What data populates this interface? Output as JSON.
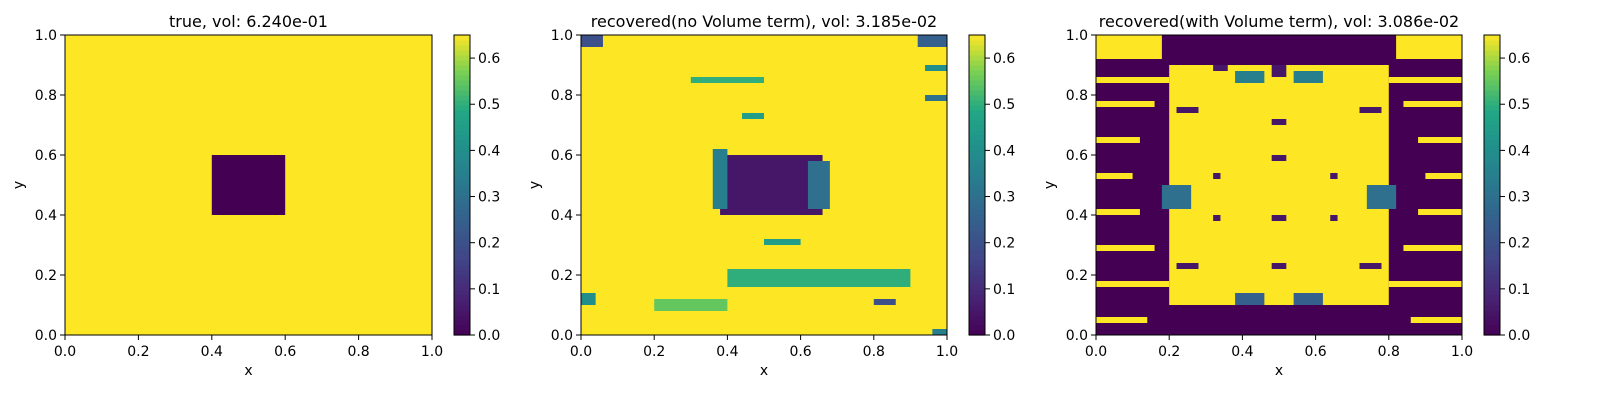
{
  "figure": {
    "colormap": "viridis",
    "colorbar": {
      "range": [
        0.0,
        0.65
      ],
      "ticks": [
        "0.0",
        "0.1",
        "0.2",
        "0.3",
        "0.4",
        "0.5",
        "0.6"
      ]
    },
    "axis_ticks": [
      "0.0",
      "0.2",
      "0.4",
      "0.6",
      "0.8",
      "1.0"
    ]
  },
  "chart_data": [
    {
      "type": "heatmap",
      "title": "true, vol: 6.240e-01",
      "xlabel": "x",
      "ylabel": "y",
      "xlim": [
        0.0,
        1.0
      ],
      "ylim": [
        0.0,
        1.0
      ],
      "vmin": 0.0,
      "vmax": 0.65,
      "background_value": 0.65,
      "regions": [
        {
          "x": [
            0.4,
            0.6
          ],
          "y": [
            0.4,
            0.6
          ],
          "value": 0.0
        }
      ]
    },
    {
      "type": "heatmap",
      "title": "recovered(no Volume term), vol: 3.185e-02",
      "xlabel": "x",
      "ylabel": "y",
      "xlim": [
        0.0,
        1.0
      ],
      "ylim": [
        0.0,
        1.0
      ],
      "vmin": 0.0,
      "vmax": 0.65,
      "background_value": 0.65,
      "regions": [
        {
          "x": [
            0.38,
            0.66
          ],
          "y": [
            0.4,
            0.6
          ],
          "value": 0.05
        },
        {
          "x": [
            0.36,
            0.4
          ],
          "y": [
            0.42,
            0.62
          ],
          "value": 0.35
        },
        {
          "x": [
            0.62,
            0.68
          ],
          "y": [
            0.42,
            0.58
          ],
          "value": 0.3
        },
        {
          "x": [
            0.0,
            0.06
          ],
          "y": [
            0.96,
            1.0
          ],
          "value": 0.2
        },
        {
          "x": [
            0.92,
            1.0
          ],
          "y": [
            0.96,
            1.0
          ],
          "value": 0.25
        },
        {
          "x": [
            0.0,
            0.04
          ],
          "y": [
            0.1,
            0.14
          ],
          "value": 0.4
        },
        {
          "x": [
            0.96,
            1.0
          ],
          "y": [
            0.0,
            0.02
          ],
          "value": 0.35
        },
        {
          "x": [
            0.3,
            0.5
          ],
          "y": [
            0.84,
            0.86
          ],
          "value": 0.5
        },
        {
          "x": [
            0.44,
            0.5
          ],
          "y": [
            0.72,
            0.74
          ],
          "value": 0.45
        },
        {
          "x": [
            0.4,
            0.9
          ],
          "y": [
            0.16,
            0.22
          ],
          "value": 0.5
        },
        {
          "x": [
            0.2,
            0.4
          ],
          "y": [
            0.08,
            0.12
          ],
          "value": 0.55
        },
        {
          "x": [
            0.5,
            0.6
          ],
          "y": [
            0.3,
            0.32
          ],
          "value": 0.45
        },
        {
          "x": [
            0.8,
            0.86
          ],
          "y": [
            0.1,
            0.12
          ],
          "value": 0.2
        },
        {
          "x": [
            0.94,
            1.0
          ],
          "y": [
            0.78,
            0.8
          ],
          "value": 0.3
        },
        {
          "x": [
            0.94,
            1.0
          ],
          "y": [
            0.88,
            0.9
          ],
          "value": 0.4
        }
      ]
    },
    {
      "type": "heatmap",
      "title": "recovered(with Volume term), vol: 3.086e-02",
      "xlabel": "x",
      "ylabel": "y",
      "xlim": [
        0.0,
        1.0
      ],
      "ylim": [
        0.0,
        1.0
      ],
      "vmin": 0.0,
      "vmax": 0.65,
      "background_value": 0.0,
      "regions": [
        {
          "x": [
            0.2,
            0.8
          ],
          "y": [
            0.1,
            0.9
          ],
          "value": 0.65
        },
        {
          "x": [
            0.0,
            0.18
          ],
          "y": [
            0.92,
            1.0
          ],
          "value": 0.65
        },
        {
          "x": [
            0.82,
            1.0
          ],
          "y": [
            0.92,
            1.0
          ],
          "value": 0.65
        },
        {
          "x": [
            0.0,
            0.2
          ],
          "y": [
            0.84,
            0.86
          ],
          "value": 0.65
        },
        {
          "x": [
            0.8,
            1.0
          ],
          "y": [
            0.84,
            0.86
          ],
          "value": 0.65
        },
        {
          "x": [
            0.0,
            0.16
          ],
          "y": [
            0.76,
            0.78
          ],
          "value": 0.65
        },
        {
          "x": [
            0.84,
            1.0
          ],
          "y": [
            0.76,
            0.78
          ],
          "value": 0.65
        },
        {
          "x": [
            0.0,
            0.12
          ],
          "y": [
            0.64,
            0.66
          ],
          "value": 0.65
        },
        {
          "x": [
            0.88,
            1.0
          ],
          "y": [
            0.64,
            0.66
          ],
          "value": 0.65
        },
        {
          "x": [
            0.0,
            0.1
          ],
          "y": [
            0.52,
            0.54
          ],
          "value": 0.65
        },
        {
          "x": [
            0.9,
            1.0
          ],
          "y": [
            0.52,
            0.54
          ],
          "value": 0.65
        },
        {
          "x": [
            0.0,
            0.12
          ],
          "y": [
            0.4,
            0.42
          ],
          "value": 0.65
        },
        {
          "x": [
            0.88,
            1.0
          ],
          "y": [
            0.4,
            0.42
          ],
          "value": 0.65
        },
        {
          "x": [
            0.0,
            0.16
          ],
          "y": [
            0.28,
            0.3
          ],
          "value": 0.65
        },
        {
          "x": [
            0.84,
            1.0
          ],
          "y": [
            0.28,
            0.3
          ],
          "value": 0.65
        },
        {
          "x": [
            0.0,
            0.2
          ],
          "y": [
            0.16,
            0.18
          ],
          "value": 0.65
        },
        {
          "x": [
            0.8,
            1.0
          ],
          "y": [
            0.16,
            0.18
          ],
          "value": 0.65
        },
        {
          "x": [
            0.0,
            0.14
          ],
          "y": [
            0.04,
            0.06
          ],
          "value": 0.65
        },
        {
          "x": [
            0.86,
            1.0
          ],
          "y": [
            0.04,
            0.06
          ],
          "value": 0.65
        },
        {
          "x": [
            0.32,
            0.36
          ],
          "y": [
            0.88,
            0.9
          ],
          "value": 0.05
        },
        {
          "x": [
            0.48,
            0.52
          ],
          "y": [
            0.86,
            0.9
          ],
          "value": 0.05
        },
        {
          "x": [
            0.48,
            0.52
          ],
          "y": [
            0.7,
            0.72
          ],
          "value": 0.05
        },
        {
          "x": [
            0.48,
            0.52
          ],
          "y": [
            0.58,
            0.6
          ],
          "value": 0.05
        },
        {
          "x": [
            0.48,
            0.52
          ],
          "y": [
            0.38,
            0.4
          ],
          "value": 0.05
        },
        {
          "x": [
            0.48,
            0.52
          ],
          "y": [
            0.22,
            0.24
          ],
          "value": 0.05
        },
        {
          "x": [
            0.32,
            0.34
          ],
          "y": [
            0.52,
            0.54
          ],
          "value": 0.05
        },
        {
          "x": [
            0.32,
            0.34
          ],
          "y": [
            0.38,
            0.4
          ],
          "value": 0.05
        },
        {
          "x": [
            0.64,
            0.66
          ],
          "y": [
            0.52,
            0.54
          ],
          "value": 0.05
        },
        {
          "x": [
            0.64,
            0.66
          ],
          "y": [
            0.38,
            0.4
          ],
          "value": 0.05
        },
        {
          "x": [
            0.22,
            0.28
          ],
          "y": [
            0.74,
            0.76
          ],
          "value": 0.05
        },
        {
          "x": [
            0.72,
            0.78
          ],
          "y": [
            0.74,
            0.76
          ],
          "value": 0.05
        },
        {
          "x": [
            0.22,
            0.28
          ],
          "y": [
            0.22,
            0.24
          ],
          "value": 0.05
        },
        {
          "x": [
            0.72,
            0.78
          ],
          "y": [
            0.22,
            0.24
          ],
          "value": 0.05
        },
        {
          "x": [
            0.38,
            0.46
          ],
          "y": [
            0.84,
            0.88
          ],
          "value": 0.35
        },
        {
          "x": [
            0.54,
            0.62
          ],
          "y": [
            0.84,
            0.88
          ],
          "value": 0.35
        },
        {
          "x": [
            0.18,
            0.26
          ],
          "y": [
            0.42,
            0.5
          ],
          "value": 0.3
        },
        {
          "x": [
            0.74,
            0.82
          ],
          "y": [
            0.42,
            0.5
          ],
          "value": 0.3
        },
        {
          "x": [
            0.38,
            0.46
          ],
          "y": [
            0.1,
            0.14
          ],
          "value": 0.25
        },
        {
          "x": [
            0.54,
            0.62
          ],
          "y": [
            0.1,
            0.14
          ],
          "value": 0.25
        }
      ]
    }
  ]
}
